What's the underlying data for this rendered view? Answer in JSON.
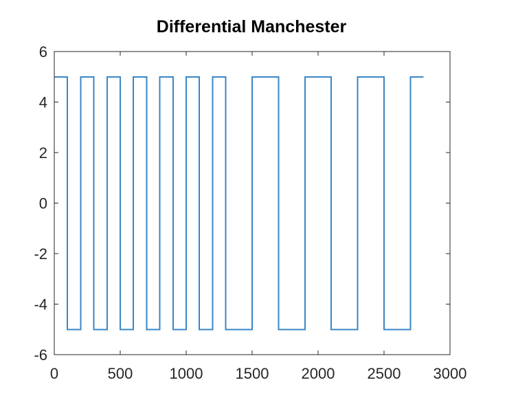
{
  "chart_data": {
    "type": "line",
    "title": "Differential Manchester",
    "xlabel": "",
    "ylabel": "",
    "xlim": [
      0,
      3000
    ],
    "ylim": [
      -6,
      6
    ],
    "xticks": [
      0,
      500,
      1000,
      1500,
      2000,
      2500,
      3000
    ],
    "yticks": [
      -6,
      -4,
      -2,
      0,
      2,
      4,
      6
    ],
    "xtick_labels": [
      "0",
      "500",
      "1000",
      "1500",
      "2000",
      "2500",
      "3000"
    ],
    "ytick_labels": [
      "-6",
      "-4",
      "-2",
      "0",
      "2",
      "4",
      "6"
    ],
    "grid": false,
    "line_style": "step",
    "series": [
      {
        "color": "#3a86c5",
        "x": [
          0,
          100,
          100,
          200,
          200,
          300,
          300,
          400,
          400,
          500,
          500,
          600,
          600,
          700,
          700,
          800,
          800,
          900,
          900,
          1000,
          1000,
          1100,
          1100,
          1200,
          1200,
          1300,
          1300,
          1500,
          1500,
          1700,
          1700,
          1900,
          1900,
          2100,
          2100,
          2300,
          2300,
          2500,
          2500,
          2700,
          2700,
          2800
        ],
        "y": [
          5,
          5,
          -5,
          -5,
          5,
          5,
          -5,
          -5,
          5,
          5,
          -5,
          -5,
          5,
          5,
          -5,
          -5,
          5,
          5,
          -5,
          -5,
          5,
          5,
          -5,
          -5,
          5,
          5,
          -5,
          -5,
          5,
          5,
          -5,
          -5,
          5,
          5,
          -5,
          -5,
          5,
          5,
          -5,
          -5,
          5,
          5
        ]
      }
    ]
  }
}
